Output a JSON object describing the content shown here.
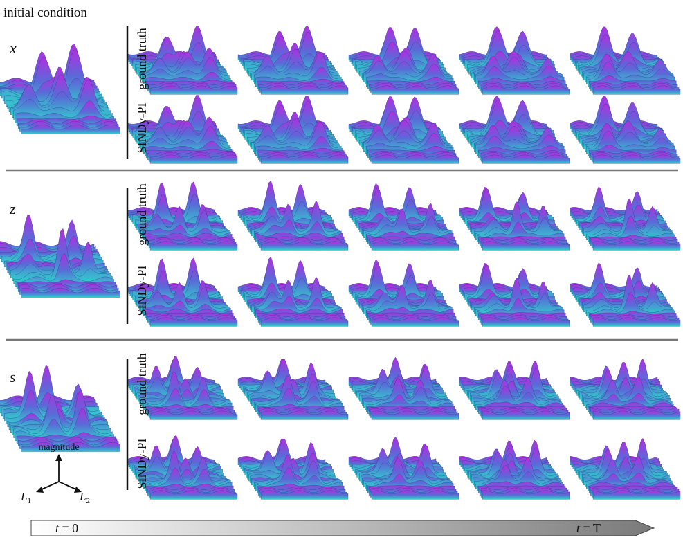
{
  "header": {
    "title": "initial condition"
  },
  "panels": [
    {
      "variable": "x",
      "rows": [
        "ground truth",
        "SINDy-PI"
      ]
    },
    {
      "variable": "z",
      "rows": [
        "ground truth",
        "SINDy-PI"
      ]
    },
    {
      "variable": "s",
      "rows": [
        "ground truth",
        "SINDy-PI"
      ]
    }
  ],
  "axes": {
    "vertical": "magnitude",
    "left": {
      "base": "L",
      "sub": "1"
    },
    "right": {
      "base": "L",
      "sub": "2"
    }
  },
  "timeline": {
    "start": {
      "symbol": "t",
      "value": "= 0"
    },
    "end": {
      "symbol": "t",
      "value": "= T"
    }
  }
}
